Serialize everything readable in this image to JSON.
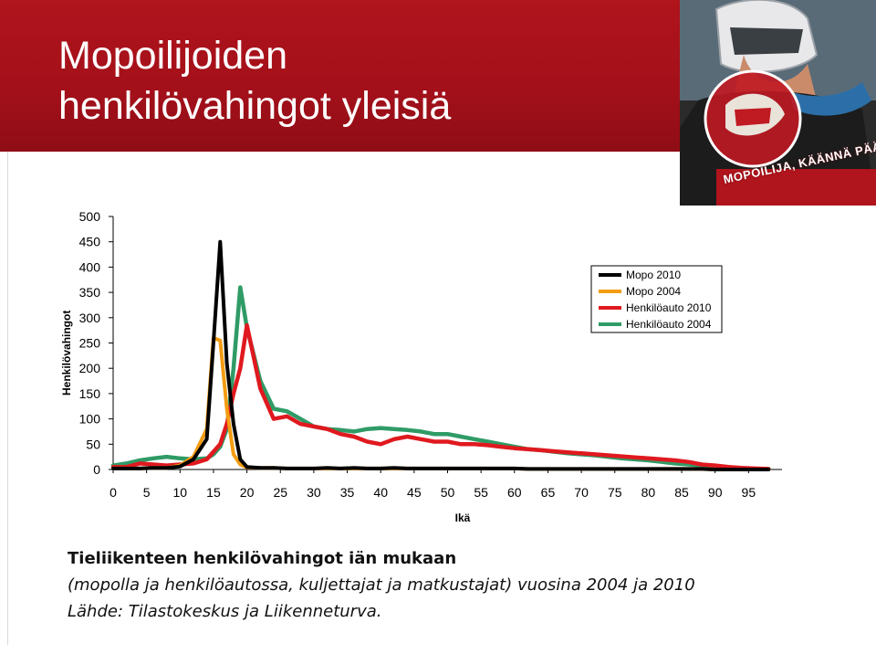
{
  "header": {
    "title_line1": "Mopoilijoiden",
    "title_line2": "henkilövahingot yleisiä",
    "badge": "MOPOILIJA, KÄÄNNÄ PÄÄ!",
    "background_color": "#a3101a"
  },
  "chart_data": {
    "type": "line",
    "xlabel": "Ikä",
    "ylabel": "Henkilövahingot",
    "xlim": [
      0,
      100
    ],
    "ylim": [
      0,
      500
    ],
    "x_ticks": [
      "0",
      "5",
      "10",
      "15",
      "20",
      "25",
      "30",
      "35",
      "40",
      "45",
      "50",
      "55",
      "60",
      "65",
      "70",
      "75",
      "80",
      "85",
      "90",
      "95"
    ],
    "y_ticks": [
      "0",
      "50",
      "100",
      "150",
      "200",
      "250",
      "300",
      "350",
      "400",
      "450",
      "500"
    ],
    "legend_position": "top-right",
    "x": [
      0,
      2,
      4,
      6,
      8,
      10,
      12,
      14,
      15,
      16,
      17,
      18,
      19,
      20,
      22,
      24,
      26,
      28,
      30,
      32,
      34,
      36,
      38,
      40,
      42,
      44,
      46,
      48,
      50,
      52,
      54,
      56,
      58,
      60,
      62,
      64,
      66,
      68,
      70,
      72,
      74,
      76,
      78,
      80,
      82,
      84,
      86,
      88,
      90,
      92,
      94,
      96,
      98
    ],
    "series": [
      {
        "name": "Mopo 2010",
        "color": "#000000",
        "values": [
          2,
          2,
          2,
          3,
          3,
          6,
          20,
          60,
          250,
          450,
          210,
          90,
          20,
          5,
          3,
          3,
          2,
          2,
          2,
          3,
          2,
          3,
          2,
          2,
          3,
          2,
          2,
          2,
          2,
          2,
          2,
          2,
          2,
          2,
          1,
          1,
          1,
          1,
          1,
          1,
          1,
          1,
          1,
          1,
          1,
          1,
          1,
          1,
          0,
          0,
          0,
          0,
          0
        ]
      },
      {
        "name": "Mopo 2004",
        "color": "#f39c12",
        "values": [
          2,
          2,
          2,
          3,
          3,
          8,
          25,
          80,
          260,
          255,
          120,
          30,
          10,
          4,
          3,
          3,
          2,
          2,
          2,
          2,
          2,
          2,
          2,
          2,
          2,
          2,
          2,
          2,
          2,
          2,
          2,
          2,
          2,
          2,
          1,
          1,
          1,
          1,
          1,
          1,
          1,
          1,
          1,
          1,
          1,
          1,
          1,
          1,
          0,
          0,
          0,
          0,
          0
        ]
      },
      {
        "name": "Henkilöauto 2010",
        "color": "#e0191f",
        "values": [
          5,
          5,
          12,
          10,
          8,
          10,
          12,
          20,
          35,
          50,
          90,
          150,
          200,
          285,
          160,
          100,
          105,
          90,
          85,
          80,
          70,
          65,
          55,
          50,
          60,
          65,
          60,
          55,
          55,
          50,
          50,
          48,
          45,
          42,
          40,
          38,
          36,
          34,
          32,
          30,
          28,
          26,
          24,
          22,
          20,
          18,
          15,
          10,
          8,
          5,
          3,
          2,
          1
        ]
      },
      {
        "name": "Henkilöauto 2004",
        "color": "#2f9b66",
        "values": [
          8,
          12,
          18,
          22,
          25,
          22,
          20,
          22,
          30,
          45,
          80,
          200,
          360,
          280,
          175,
          120,
          115,
          100,
          85,
          80,
          78,
          75,
          80,
          82,
          80,
          78,
          75,
          70,
          70,
          65,
          60,
          55,
          50,
          45,
          40,
          38,
          35,
          32,
          30,
          28,
          25,
          22,
          20,
          18,
          15,
          12,
          10,
          8,
          5,
          3,
          2,
          1,
          1
        ]
      }
    ]
  },
  "caption": {
    "line1": "Tieliikenteen henkilövahingot iän mukaan",
    "line2": "(mopolla ja henkilöautossa, kuljettajat ja matkustajat) vuosina 2004 ja 2010",
    "line3": "Lähde: Tilastokeskus ja Liikenneturva."
  }
}
